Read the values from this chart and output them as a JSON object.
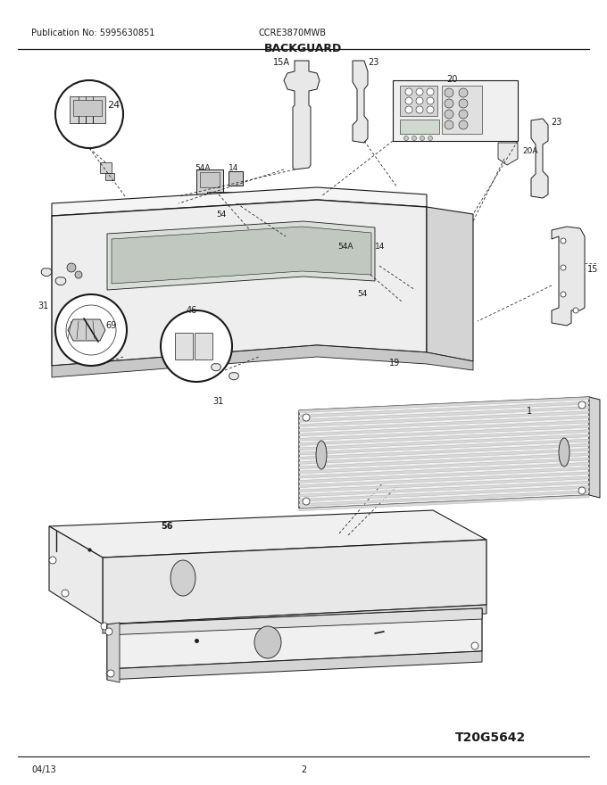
{
  "title": "BACKGUARD",
  "pub_no": "Publication No: 5995630851",
  "model": "CCRE3870MWB",
  "date": "04/13",
  "page": "2",
  "drawing_id": "T20G5642",
  "bg_color": "#ffffff",
  "lc": "#1a1a1a",
  "gray_fill": "#e8e8e8",
  "dark_fill": "#c8c8c8",
  "mid_fill": "#d4d4d4"
}
